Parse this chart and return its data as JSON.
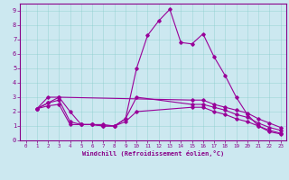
{
  "xlabel": "Windchill (Refroidissement éolien,°C)",
  "ylabel": "",
  "background_color": "#cce8f0",
  "line_color": "#990099",
  "xlim": [
    -0.5,
    23.5
  ],
  "ylim": [
    0,
    9.5
  ],
  "xticks": [
    0,
    1,
    2,
    3,
    4,
    5,
    6,
    7,
    8,
    9,
    10,
    11,
    12,
    13,
    14,
    15,
    16,
    17,
    18,
    19,
    20,
    21,
    22,
    23
  ],
  "yticks": [
    0,
    1,
    2,
    3,
    4,
    5,
    6,
    7,
    8,
    9
  ],
  "lines": [
    {
      "x": [
        1,
        2,
        3,
        4,
        5,
        6,
        7,
        8,
        9,
        10,
        11,
        12,
        13,
        14,
        15,
        16,
        17,
        18,
        19,
        20,
        21,
        22,
        23
      ],
      "y": [
        2.2,
        3.0,
        3.0,
        2.0,
        1.1,
        1.1,
        1.1,
        1.0,
        1.5,
        5.0,
        7.3,
        8.3,
        9.1,
        6.8,
        6.7,
        7.4,
        5.8,
        4.5,
        3.0,
        1.8,
        1.0,
        0.6,
        0.45
      ]
    },
    {
      "x": [
        1,
        2,
        3,
        15,
        16,
        17,
        18,
        19,
        20,
        21,
        22,
        23
      ],
      "y": [
        2.2,
        2.6,
        3.0,
        2.8,
        2.8,
        2.5,
        2.3,
        2.1,
        1.9,
        1.5,
        1.2,
        0.9
      ]
    },
    {
      "x": [
        1,
        2,
        3,
        4,
        5,
        6,
        7,
        8,
        9,
        10,
        15,
        16,
        17,
        18,
        19,
        20,
        21,
        22,
        23
      ],
      "y": [
        2.2,
        2.6,
        2.8,
        1.3,
        1.1,
        1.1,
        1.0,
        1.0,
        1.5,
        3.0,
        2.5,
        2.5,
        2.3,
        2.1,
        1.8,
        1.6,
        1.2,
        0.9,
        0.7
      ]
    },
    {
      "x": [
        1,
        2,
        3,
        4,
        5,
        6,
        7,
        8,
        9,
        10,
        15,
        16,
        17,
        18,
        19,
        20,
        21,
        22,
        23
      ],
      "y": [
        2.2,
        2.4,
        2.5,
        1.1,
        1.1,
        1.1,
        1.0,
        1.0,
        1.3,
        2.0,
        2.3,
        2.3,
        2.0,
        1.8,
        1.5,
        1.3,
        1.0,
        0.7,
        0.5
      ]
    }
  ]
}
